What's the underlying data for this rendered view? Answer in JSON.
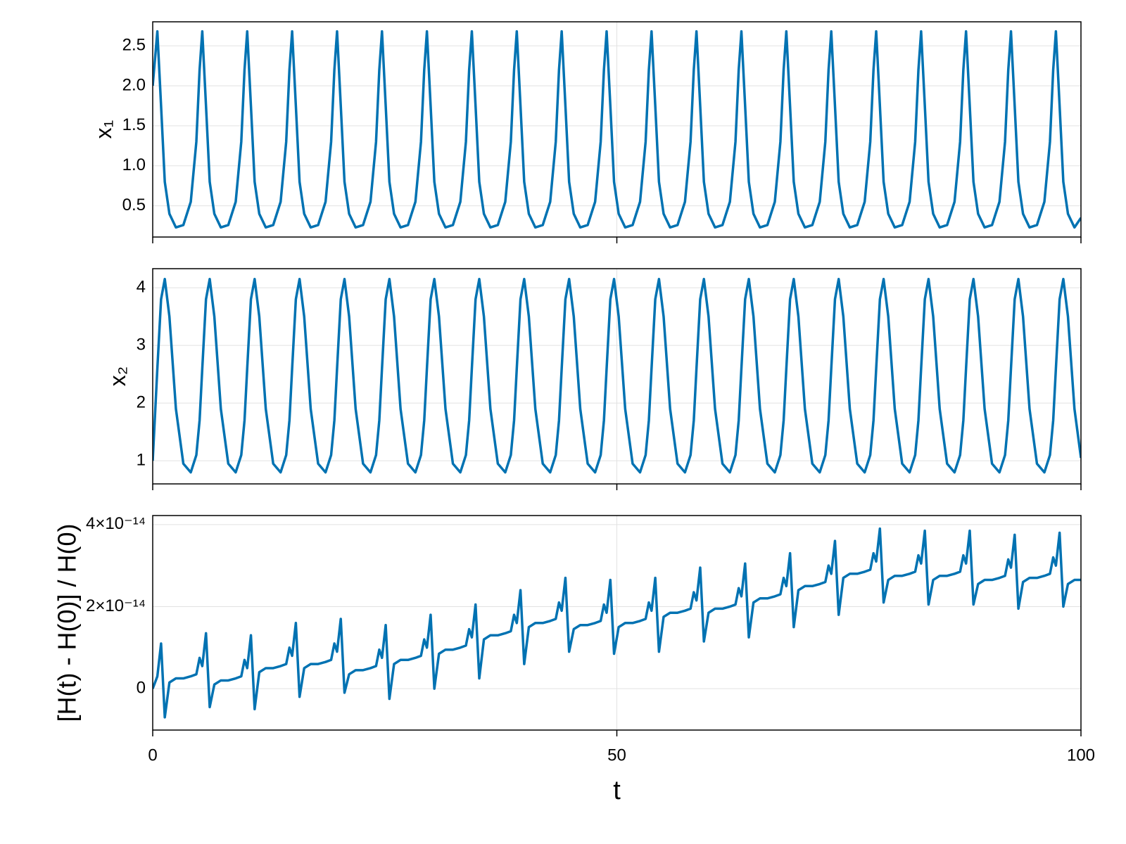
{
  "chart_data": [
    {
      "type": "line",
      "ylabel": "x₁",
      "color": "#0072b2",
      "grid": true,
      "xlim": [
        0,
        100
      ],
      "xticks": [
        0,
        50,
        100
      ],
      "ylim": [
        0.11,
        2.8
      ],
      "yticks": [
        0.5,
        {
          "value": 1,
          "label": "1.0"
        },
        1.5,
        {
          "value": 2,
          "label": "2.0"
        },
        2.5
      ],
      "x": [
        0,
        0.5,
        0.9,
        1.3,
        1.8,
        2.5,
        3.3,
        4.1,
        4.7,
        5.05,
        5.34,
        5.74,
        6.14,
        6.64,
        7.34,
        8.14,
        8.94,
        9.54,
        9.89,
        10.18,
        10.58,
        10.98,
        11.48,
        12.18,
        12.98,
        13.78,
        14.38,
        14.73,
        15.02,
        15.42,
        15.82,
        16.32,
        17.02,
        17.82,
        18.62,
        19.22,
        19.57,
        19.86,
        20.26,
        20.66,
        21.16,
        21.86,
        22.66,
        23.46,
        24.06,
        24.41,
        24.7,
        25.1,
        25.5,
        26.0,
        26.7,
        27.5,
        28.3,
        28.9,
        29.25,
        29.54,
        29.94,
        30.34,
        30.84,
        31.54,
        32.34,
        33.14,
        33.74,
        34.09,
        34.38,
        34.78,
        35.18,
        35.68,
        36.38,
        37.18,
        37.98,
        38.58,
        38.93,
        39.22,
        39.62,
        40.02,
        40.52,
        41.22,
        42.02,
        42.82,
        43.42,
        43.77,
        44.06,
        44.46,
        44.86,
        45.36,
        46.06,
        46.86,
        47.66,
        48.26,
        48.61,
        48.9,
        49.3,
        49.7,
        50.2,
        50.9,
        51.7,
        52.5,
        53.1,
        53.45,
        53.74,
        54.14,
        54.54,
        55.04,
        55.74,
        56.54,
        57.34,
        57.94,
        58.29,
        58.58,
        58.98,
        59.38,
        59.88,
        60.58,
        61.38,
        62.18,
        62.78,
        63.13,
        63.42,
        63.82,
        64.22,
        64.72,
        65.42,
        66.22,
        67.02,
        67.62,
        67.97,
        68.26,
        68.66,
        69.06,
        69.56,
        70.26,
        71.06,
        71.86,
        72.46,
        72.81,
        73.1,
        73.5,
        73.9,
        74.4,
        75.1,
        75.9,
        76.7,
        77.3,
        77.65,
        77.94,
        78.34,
        78.74,
        79.24,
        79.94,
        80.74,
        81.54,
        82.14,
        82.49,
        82.78,
        83.18,
        83.58,
        84.08,
        84.78,
        85.58,
        86.38,
        86.98,
        87.33,
        87.62,
        88.02,
        88.42,
        88.92,
        89.62,
        90.42,
        91.22,
        91.82,
        92.17,
        92.46,
        92.86,
        93.26,
        93.76,
        94.46,
        95.26,
        96.06,
        96.66,
        97.01,
        97.3,
        97.7,
        98.1,
        98.6,
        99.3,
        100
      ],
      "values": [
        2.0,
        2.68,
        1.75,
        0.8,
        0.4,
        0.23,
        0.26,
        0.55,
        1.3,
        2.2,
        2.68,
        1.75,
        0.8,
        0.4,
        0.23,
        0.26,
        0.55,
        1.3,
        2.2,
        2.68,
        1.75,
        0.8,
        0.4,
        0.23,
        0.26,
        0.55,
        1.3,
        2.2,
        2.68,
        1.75,
        0.8,
        0.4,
        0.23,
        0.26,
        0.55,
        1.3,
        2.2,
        2.68,
        1.75,
        0.8,
        0.4,
        0.23,
        0.26,
        0.55,
        1.3,
        2.2,
        2.68,
        1.75,
        0.8,
        0.4,
        0.23,
        0.26,
        0.55,
        1.3,
        2.2,
        2.68,
        1.75,
        0.8,
        0.4,
        0.23,
        0.26,
        0.55,
        1.3,
        2.2,
        2.68,
        1.75,
        0.8,
        0.4,
        0.23,
        0.26,
        0.55,
        1.3,
        2.2,
        2.68,
        1.75,
        0.8,
        0.4,
        0.23,
        0.26,
        0.55,
        1.3,
        2.2,
        2.68,
        1.75,
        0.8,
        0.4,
        0.23,
        0.26,
        0.55,
        1.3,
        2.2,
        2.68,
        1.75,
        0.8,
        0.4,
        0.23,
        0.26,
        0.55,
        1.3,
        2.2,
        2.68,
        1.75,
        0.8,
        0.4,
        0.23,
        0.26,
        0.55,
        1.3,
        2.2,
        2.68,
        1.75,
        0.8,
        0.4,
        0.23,
        0.26,
        0.55,
        1.3,
        2.2,
        2.68,
        1.75,
        0.8,
        0.4,
        0.23,
        0.26,
        0.55,
        1.3,
        2.2,
        2.68,
        1.75,
        0.8,
        0.4,
        0.23,
        0.26,
        0.55,
        1.3,
        2.2,
        2.68,
        1.75,
        0.8,
        0.4,
        0.23,
        0.26,
        0.55,
        1.3,
        2.2,
        2.68,
        1.75,
        0.8,
        0.4,
        0.23,
        0.26,
        0.55,
        1.3,
        2.2,
        2.68,
        1.75,
        0.8,
        0.4,
        0.23,
        0.26,
        0.55,
        1.3,
        2.2,
        2.68,
        1.75,
        0.8,
        0.4,
        0.23,
        0.26,
        0.55,
        1.3,
        2.2,
        2.68,
        1.75,
        0.8,
        0.4,
        0.23,
        0.26,
        0.55,
        1.3,
        2.2,
        2.68,
        1.75,
        0.8,
        0.4,
        0.23,
        0.35
      ]
    },
    {
      "type": "line",
      "ylabel": "x₂",
      "color": "#0072b2",
      "grid": true,
      "xlim": [
        0,
        100
      ],
      "xticks": [
        0,
        50,
        100
      ],
      "ylim": [
        0.6,
        4.33
      ],
      "yticks": [
        1,
        2,
        3,
        4
      ],
      "x": [
        0,
        0.5,
        0.9,
        1.3,
        1.8,
        2.5,
        3.3,
        4.1,
        4.7,
        5.05,
        5.34,
        5.74,
        6.14,
        6.64,
        7.34,
        8.14,
        8.94,
        9.54,
        9.89,
        10.18,
        10.58,
        10.98,
        11.48,
        12.18,
        12.98,
        13.78,
        14.38,
        14.73,
        15.02,
        15.42,
        15.82,
        16.32,
        17.02,
        17.82,
        18.62,
        19.22,
        19.57,
        19.86,
        20.26,
        20.66,
        21.16,
        21.86,
        22.66,
        23.46,
        24.06,
        24.41,
        24.7,
        25.1,
        25.5,
        26.0,
        26.7,
        27.5,
        28.3,
        28.9,
        29.25,
        29.54,
        29.94,
        30.34,
        30.84,
        31.54,
        32.34,
        33.14,
        33.74,
        34.09,
        34.38,
        34.78,
        35.18,
        35.68,
        36.38,
        37.18,
        37.98,
        38.58,
        38.93,
        39.22,
        39.62,
        40.02,
        40.52,
        41.22,
        42.02,
        42.82,
        43.42,
        43.77,
        44.06,
        44.46,
        44.86,
        45.36,
        46.06,
        46.86,
        47.66,
        48.26,
        48.61,
        48.9,
        49.3,
        49.7,
        50.2,
        50.9,
        51.7,
        52.5,
        53.1,
        53.45,
        53.74,
        54.14,
        54.54,
        55.04,
        55.74,
        56.54,
        57.34,
        57.94,
        58.29,
        58.58,
        58.98,
        59.38,
        59.88,
        60.58,
        61.38,
        62.18,
        62.78,
        63.13,
        63.42,
        63.82,
        64.22,
        64.72,
        65.42,
        66.22,
        67.02,
        67.62,
        67.97,
        68.26,
        68.66,
        69.06,
        69.56,
        70.26,
        71.06,
        71.86,
        72.46,
        72.81,
        73.1,
        73.5,
        73.9,
        74.4,
        75.1,
        75.9,
        76.7,
        77.3,
        77.65,
        77.94,
        78.34,
        78.74,
        79.24,
        79.94,
        80.74,
        81.54,
        82.14,
        82.49,
        82.78,
        83.18,
        83.58,
        84.08,
        84.78,
        85.58,
        86.38,
        86.98,
        87.33,
        87.62,
        88.02,
        88.42,
        88.92,
        89.62,
        90.42,
        91.22,
        91.82,
        92.17,
        92.46,
        92.86,
        93.26,
        93.76,
        94.46,
        95.26,
        96.06,
        96.66,
        97.01,
        97.3,
        97.7,
        98.1,
        98.6,
        99.3,
        100
      ],
      "values": [
        1.0,
        2.6,
        3.8,
        4.15,
        3.5,
        1.9,
        0.95,
        0.8,
        1.1,
        1.7,
        2.6,
        3.8,
        4.15,
        3.5,
        1.9,
        0.95,
        0.8,
        1.1,
        1.7,
        2.6,
        3.8,
        4.15,
        3.5,
        1.9,
        0.95,
        0.8,
        1.1,
        1.7,
        2.6,
        3.8,
        4.15,
        3.5,
        1.9,
        0.95,
        0.8,
        1.1,
        1.7,
        2.6,
        3.8,
        4.15,
        3.5,
        1.9,
        0.95,
        0.8,
        1.1,
        1.7,
        2.6,
        3.8,
        4.15,
        3.5,
        1.9,
        0.95,
        0.8,
        1.1,
        1.7,
        2.6,
        3.8,
        4.15,
        3.5,
        1.9,
        0.95,
        0.8,
        1.1,
        1.7,
        2.6,
        3.8,
        4.15,
        3.5,
        1.9,
        0.95,
        0.8,
        1.1,
        1.7,
        2.6,
        3.8,
        4.15,
        3.5,
        1.9,
        0.95,
        0.8,
        1.1,
        1.7,
        2.6,
        3.8,
        4.15,
        3.5,
        1.9,
        0.95,
        0.8,
        1.1,
        1.7,
        2.6,
        3.8,
        4.15,
        3.5,
        1.9,
        0.95,
        0.8,
        1.1,
        1.7,
        2.6,
        3.8,
        4.15,
        3.5,
        1.9,
        0.95,
        0.8,
        1.1,
        1.7,
        2.6,
        3.8,
        4.15,
        3.5,
        1.9,
        0.95,
        0.8,
        1.1,
        1.7,
        2.6,
        3.8,
        4.15,
        3.5,
        1.9,
        0.95,
        0.8,
        1.1,
        1.7,
        2.6,
        3.8,
        4.15,
        3.5,
        1.9,
        0.95,
        0.8,
        1.1,
        1.7,
        2.6,
        3.8,
        4.15,
        3.5,
        1.9,
        0.95,
        0.8,
        1.1,
        1.7,
        2.6,
        3.8,
        4.15,
        3.5,
        1.9,
        0.95,
        0.8,
        1.1,
        1.7,
        2.6,
        3.8,
        4.15,
        3.5,
        1.9,
        0.95,
        0.8,
        1.1,
        1.7,
        2.6,
        3.8,
        4.15,
        3.5,
        1.9,
        0.95,
        0.8,
        1.1,
        1.7,
        2.6,
        3.8,
        4.15,
        3.5,
        1.9,
        0.95,
        0.8,
        1.1,
        1.7,
        2.6,
        3.8,
        4.15,
        3.5,
        1.9,
        1.05
      ]
    },
    {
      "type": "line",
      "ylabel": "[H(t) - H(0)] / H(0)",
      "xlabel": "t",
      "color": "#0072b2",
      "grid": true,
      "xlim": [
        0,
        100
      ],
      "xticks": [
        0,
        50,
        100
      ],
      "ylim": [
        -1.01e-14,
        4.22e-14
      ],
      "yticks": [
        0,
        {
          "value": 2e-14,
          "label": "2×10⁻¹⁴"
        },
        {
          "value": 4e-14,
          "label": "4×10⁻¹⁴"
        }
      ],
      "x": [
        0,
        0.5,
        0.9,
        1.3,
        1.8,
        2.5,
        3.3,
        4.1,
        4.7,
        5.05,
        5.34,
        5.74,
        6.14,
        6.64,
        7.34,
        8.14,
        8.94,
        9.54,
        9.89,
        10.18,
        10.58,
        10.98,
        11.48,
        12.18,
        12.98,
        13.78,
        14.38,
        14.73,
        15.02,
        15.42,
        15.82,
        16.32,
        17.02,
        17.82,
        18.62,
        19.22,
        19.57,
        19.86,
        20.26,
        20.66,
        21.16,
        21.86,
        22.66,
        23.46,
        24.06,
        24.41,
        24.7,
        25.1,
        25.5,
        26.0,
        26.7,
        27.5,
        28.3,
        28.9,
        29.25,
        29.54,
        29.94,
        30.34,
        30.84,
        31.54,
        32.34,
        33.14,
        33.74,
        34.09,
        34.38,
        34.78,
        35.18,
        35.68,
        36.38,
        37.18,
        37.98,
        38.58,
        38.93,
        39.22,
        39.62,
        40.02,
        40.52,
        41.22,
        42.02,
        42.82,
        43.42,
        43.77,
        44.06,
        44.46,
        44.86,
        45.36,
        46.06,
        46.86,
        47.66,
        48.26,
        48.61,
        48.9,
        49.3,
        49.7,
        50.2,
        50.9,
        51.7,
        52.5,
        53.1,
        53.45,
        53.74,
        54.14,
        54.54,
        55.04,
        55.74,
        56.54,
        57.34,
        57.94,
        58.29,
        58.58,
        58.98,
        59.38,
        59.88,
        60.58,
        61.38,
        62.18,
        62.78,
        63.13,
        63.42,
        63.82,
        64.22,
        64.72,
        65.42,
        66.22,
        67.02,
        67.62,
        67.97,
        68.26,
        68.66,
        69.06,
        69.56,
        70.26,
        71.06,
        71.86,
        72.46,
        72.81,
        73.1,
        73.5,
        73.9,
        74.4,
        75.1,
        75.9,
        76.7,
        77.3,
        77.65,
        77.94,
        78.34,
        78.74,
        79.24,
        79.94,
        80.74,
        81.54,
        82.14,
        82.49,
        82.78,
        83.18,
        83.58,
        84.08,
        84.78,
        85.58,
        86.38,
        86.98,
        87.33,
        87.62,
        88.02,
        88.42,
        88.92,
        89.62,
        90.42,
        91.22,
        91.82,
        92.17,
        92.46,
        92.86,
        93.26,
        93.76,
        94.46,
        95.26,
        96.06,
        96.66,
        97.01,
        97.3,
        97.7,
        98.1,
        98.6,
        99.3,
        100
      ],
      "values": [
        0,
        3e-15,
        1.1e-14,
        -7e-15,
        1.5e-15,
        2.5e-15,
        2.5e-15,
        3e-15,
        3.5e-15,
        7.5e-15,
        5.5e-15,
        1.35e-14,
        -4.5e-15,
        1e-15,
        2e-15,
        2e-15,
        2.5e-15,
        3e-15,
        7e-15,
        5e-15,
        1.3e-14,
        -5e-15,
        4e-15,
        5e-15,
        5e-15,
        5.5e-15,
        6e-15,
        1e-14,
        8e-15,
        1.6e-14,
        -2e-15,
        5e-15,
        6e-15,
        6e-15,
        6.5e-15,
        7e-15,
        1.1e-14,
        9e-15,
        1.7e-14,
        -1e-15,
        3.5e-15,
        4.5e-15,
        4.5e-15,
        5e-15,
        5.5e-15,
        9.5e-15,
        7.5e-15,
        1.55e-14,
        -2.5e-15,
        6e-15,
        7e-15,
        7e-15,
        7.5e-15,
        8e-15,
        1.2e-14,
        1e-14,
        1.8e-14,
        0,
        8.5e-15,
        9.5e-15,
        9.5e-15,
        1e-14,
        1.05e-14,
        1.45e-14,
        1.25e-14,
        2.05e-14,
        2.5e-15,
        1.2e-14,
        1.3e-14,
        1.3e-14,
        1.35e-14,
        1.4e-14,
        1.8e-14,
        1.6e-14,
        2.4e-14,
        6e-15,
        1.5e-14,
        1.6e-14,
        1.6e-14,
        1.65e-14,
        1.7e-14,
        2.1e-14,
        1.9e-14,
        2.7e-14,
        9e-15,
        1.45e-14,
        1.55e-14,
        1.55e-14,
        1.6e-14,
        1.65e-14,
        2.05e-14,
        1.85e-14,
        2.65e-14,
        8.5e-15,
        1.5e-14,
        1.6e-14,
        1.6e-14,
        1.65e-14,
        1.7e-14,
        2.1e-14,
        1.9e-14,
        2.7e-14,
        9e-15,
        1.75e-14,
        1.85e-14,
        1.85e-14,
        1.9e-14,
        1.95e-14,
        2.35e-14,
        2.15e-14,
        2.95e-14,
        1.15e-14,
        1.85e-14,
        1.95e-14,
        1.95e-14,
        2e-14,
        2.05e-14,
        2.45e-14,
        2.25e-14,
        3.05e-14,
        1.25e-14,
        2.1e-14,
        2.2e-14,
        2.2e-14,
        2.25e-14,
        2.3e-14,
        2.7e-14,
        2.5e-14,
        3.3e-14,
        1.5e-14,
        2.4e-14,
        2.5e-14,
        2.5e-14,
        2.55e-14,
        2.6e-14,
        3e-14,
        2.8e-14,
        3.6e-14,
        1.8e-14,
        2.7e-14,
        2.8e-14,
        2.8e-14,
        2.85e-14,
        2.9e-14,
        3.3e-14,
        3.1e-14,
        3.9e-14,
        2.1e-14,
        2.65e-14,
        2.75e-14,
        2.75e-14,
        2.8e-14,
        2.85e-14,
        3.25e-14,
        3.05e-14,
        3.85e-14,
        2.05e-14,
        2.65e-14,
        2.75e-14,
        2.75e-14,
        2.8e-14,
        2.85e-14,
        3.25e-14,
        3.05e-14,
        3.85e-14,
        2.05e-14,
        2.55e-14,
        2.65e-14,
        2.65e-14,
        2.7e-14,
        2.75e-14,
        3.15e-14,
        2.95e-14,
        3.75e-14,
        1.95e-14,
        2.6e-14,
        2.7e-14,
        2.7e-14,
        2.75e-14,
        2.8e-14,
        3.2e-14,
        3e-14,
        3.8e-14,
        2e-14,
        2.55e-14,
        2.65e-14,
        2.65e-14
      ]
    }
  ]
}
